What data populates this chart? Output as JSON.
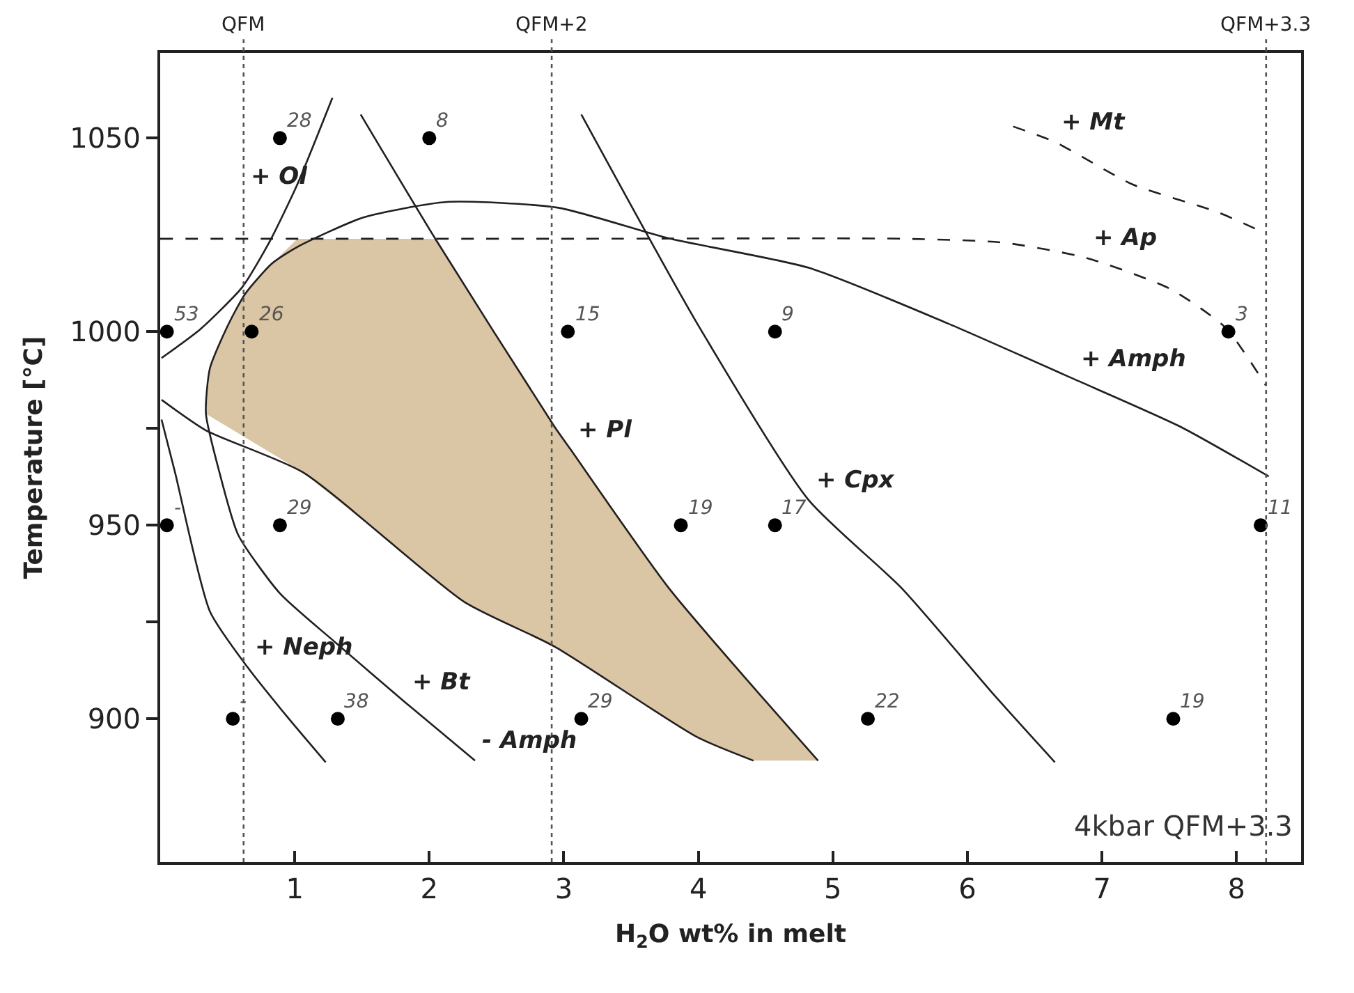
{
  "chart_data": {
    "type": "scatter",
    "xlabel": "H$_{2}$O wt% in melt",
    "ylabel": "Temperature [°C]",
    "xlim": [
      0,
      8.48
    ],
    "ylim": [
      863,
      1072
    ],
    "xticks": [
      1,
      2,
      3,
      4,
      5,
      6,
      7,
      8
    ],
    "yticks": [
      900,
      {
        "value": 925,
        "label": null
      },
      950,
      {
        "value": 975,
        "label": null
      },
      1000,
      1050
    ],
    "series": [
      {
        "type": "area",
        "color": "#dac6a4",
        "x": [
          0.34,
          0.37,
          0.5,
          0.63,
          0.83,
          1.02,
          2.05,
          2.93,
          3.78,
          4.89,
          4.41,
          3.99,
          2.93,
          2.26,
          1.06,
          0.34
        ],
        "values": [
          978.8,
          990.6,
          1001.4,
          1009.7,
          1017.6,
          1024,
          1024,
          975.5,
          933.8,
          889.2,
          889.2,
          895.3,
          918.7,
          930.2,
          963.7,
          978.8
        ]
      },
      {
        "type": "line",
        "color": "#231f20",
        "line_style": "solid",
        "x": [
          2.34,
          1.82,
          1.3,
          0.89,
          0.58,
          0.44,
          0.34,
          0.37,
          0.5,
          0.63,
          0.83,
          1.02,
          1.51,
          2.13,
          2.96,
          3.78,
          4.82,
          5.85,
          6.79,
          7.58,
          8.24
        ],
        "values": [
          889.2,
          904.3,
          919.8,
          932.4,
          947.5,
          963.7,
          978.8,
          990.6,
          1001.4,
          1009.7,
          1017.6,
          1021.9,
          1029.5,
          1033.5,
          1032,
          1024.1,
          1016.5,
          1002.2,
          987.8,
          975.5,
          962.6
        ]
      },
      {
        "type": "line",
        "color": "#231f20",
        "line_style": "dashed",
        "x": [
          0,
          2.96,
          5.54,
          6.27,
          6.89,
          7.51,
          7.92,
          8.22
        ],
        "values": [
          1024,
          1024,
          1024,
          1023,
          1019,
          1011,
          1001,
          986
        ]
      },
      {
        "type": "line",
        "color": "#231f20",
        "line_style": "dashed",
        "x": [
          6.34,
          6.65,
          7.23,
          7.85,
          8.21
        ],
        "values": [
          1053,
          1049,
          1038,
          1031,
          1025.5
        ]
      },
      {
        "type": "line",
        "color": "#231f20",
        "line_style": "solid",
        "x": [
          0.01,
          0.3,
          0.61,
          0.82,
          1.02,
          1.28
        ],
        "values": [
          993.2,
          1000.7,
          1011.5,
          1023.7,
          1038.1,
          1060.4
        ]
      },
      {
        "type": "line",
        "color": "#231f20",
        "line_style": "solid",
        "x": [
          1.49,
          2.05,
          2.93,
          3.05,
          3.78,
          4.89
        ],
        "values": [
          1056.1,
          1023.7,
          975.5,
          969.6,
          933.8,
          889.2
        ]
      },
      {
        "type": "line",
        "color": "#231f20",
        "line_style": "solid",
        "x": [
          0.01,
          0.34,
          1.06,
          2.26,
          2.93,
          3.99,
          4.41
        ],
        "values": [
          982.4,
          974.5,
          963.7,
          930.2,
          918.7,
          895.3,
          889.2
        ]
      },
      {
        "type": "line",
        "color": "#231f20",
        "line_style": "solid",
        "x": [
          0.01,
          0.11,
          0.37,
          0.65,
          0.94,
          1.23
        ],
        "values": [
          977.3,
          963.7,
          927.7,
          913.3,
          900.7,
          888.8
        ]
      },
      {
        "type": "line",
        "color": "#231f20",
        "line_style": "solid",
        "x": [
          3.13,
          3.99,
          4.82,
          5.51,
          6.2,
          6.65
        ],
        "values": [
          1056.1,
          1002.2,
          956.5,
          933.8,
          906.1,
          888.8
        ]
      },
      {
        "color": "#000000",
        "marker": "circle",
        "x": [
          0.05,
          0.89,
          2.0,
          0.68,
          3.03,
          4.57,
          7.94,
          0.05,
          0.89,
          3.87,
          4.57,
          8.18,
          0.54,
          1.32,
          3.13,
          5.26,
          7.53
        ],
        "values": [
          1000,
          1050,
          1050,
          1000,
          1000,
          1000,
          1000,
          950,
          950,
          950,
          950,
          950,
          900,
          900,
          900,
          900,
          900
        ]
      }
    ],
    "ref_lines": [
      {
        "axis": "x",
        "value": 0.62,
        "label": "QFM",
        "color": "#555555",
        "line_style": "dotted"
      },
      {
        "axis": "x",
        "value": 2.91,
        "label": "QFM+2",
        "color": "#555555",
        "line_style": "dotted"
      },
      {
        "axis": "x",
        "value": 8.22,
        "label": "QFM+3.3",
        "color": "#555555",
        "line_style": "dotted"
      }
    ],
    "annotations": [
      {
        "text": "53",
        "x": 0.05,
        "y": 1000
      },
      {
        "text": "28",
        "x": 0.89,
        "y": 1050
      },
      {
        "text": "8",
        "x": 2.0,
        "y": 1050
      },
      {
        "text": "26",
        "x": 0.68,
        "y": 1000
      },
      {
        "text": "15",
        "x": 3.03,
        "y": 1000
      },
      {
        "text": "9",
        "x": 4.57,
        "y": 1000
      },
      {
        "text": "3",
        "x": 7.94,
        "y": 1000
      },
      {
        "text": "-",
        "x": 0.05,
        "y": 950
      },
      {
        "text": "29",
        "x": 0.89,
        "y": 950
      },
      {
        "text": "19",
        "x": 3.87,
        "y": 950
      },
      {
        "text": "17",
        "x": 4.57,
        "y": 950
      },
      {
        "text": "11",
        "x": 8.18,
        "y": 950
      },
      {
        "text": "-",
        "x": 0.54,
        "y": 900
      },
      {
        "text": "38",
        "x": 1.32,
        "y": 900
      },
      {
        "text": "29",
        "x": 3.13,
        "y": 900
      },
      {
        "text": "22",
        "x": 5.26,
        "y": 900
      },
      {
        "text": "19",
        "x": 7.53,
        "y": 900
      },
      {
        "text": "+ Mt",
        "x": 6.65,
        "y": 1049
      },
      {
        "text": "+ Ol",
        "x": 0.62,
        "y": 1035
      },
      {
        "text": "+ Ap",
        "x": 6.89,
        "y": 1019
      },
      {
        "text": "+ Amph",
        "x": 6.79,
        "y": 987.8
      },
      {
        "text": "+ Pl",
        "x": 3.05,
        "y": 969.6
      },
      {
        "text": "+ Cpx",
        "x": 4.82,
        "y": 956.5
      },
      {
        "text": "+ Neph",
        "x": 0.65,
        "y": 913.3
      },
      {
        "text": "+ Bt",
        "x": 1.82,
        "y": 904.3
      },
      {
        "text": "- Amph",
        "x": 2.34,
        "y": 889.2
      },
      "4kbar QFM+3.3"
    ]
  }
}
